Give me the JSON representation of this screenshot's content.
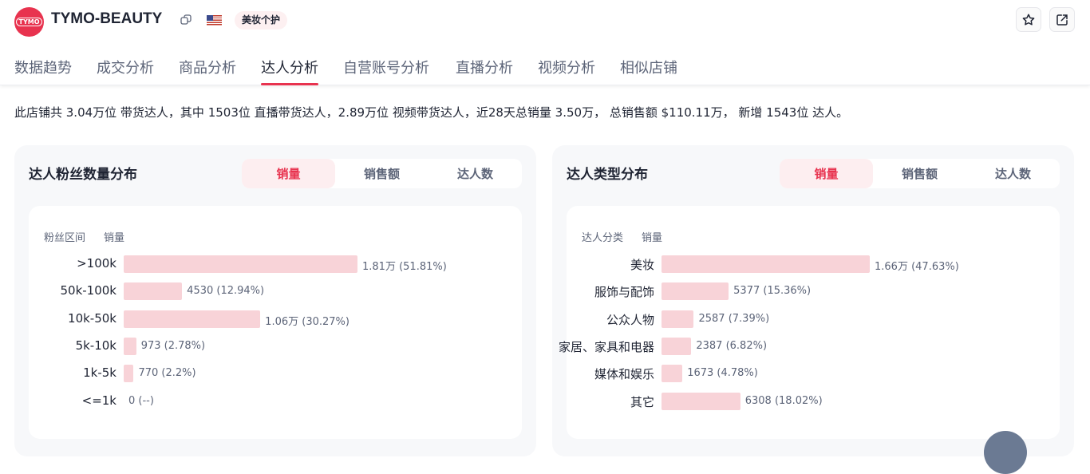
{
  "header": {
    "logo_text": "TYMO",
    "shop_name": "TYMO-BEAUTY",
    "category": "美妆个护",
    "flag": "US"
  },
  "nav": [
    {
      "label": "数据趋势"
    },
    {
      "label": "成交分析"
    },
    {
      "label": "商品分析"
    },
    {
      "label": "达人分析",
      "active": true
    },
    {
      "label": "自营账号分析"
    },
    {
      "label": "直播分析"
    },
    {
      "label": "视频分析"
    },
    {
      "label": "相似店铺"
    }
  ],
  "summary": "此店铺共 3.04万位 带货达人，其中 1503位 直播带货达人，2.89万位 视频带货达人，近28天总销量 3.50万， 总销售额 $110.11万， 新增 1543位 达人。",
  "colors": {
    "accent": "#e8334f",
    "bar": "#f8d3d8"
  },
  "cards": [
    {
      "title": "达人粉丝数量分布",
      "tabs": [
        "销量",
        "销售额",
        "达人数"
      ],
      "active_tab": 0,
      "col1": "粉丝区间",
      "col2": "销量",
      "rows": [
        {
          "label": ">100k",
          "value": "1.81万 (51.81%)",
          "pct": 51.81
        },
        {
          "label": "50k-100k",
          "value": "4530 (12.94%)",
          "pct": 12.94
        },
        {
          "label": "10k-50k",
          "value": "1.06万 (30.27%)",
          "pct": 30.27
        },
        {
          "label": "5k-10k",
          "value": "973 (2.78%)",
          "pct": 2.78
        },
        {
          "label": "1k-5k",
          "value": "770 (2.2%)",
          "pct": 2.2
        },
        {
          "label": "<=1k",
          "value": "0 (--)",
          "pct": 0
        }
      ]
    },
    {
      "title": "达人类型分布",
      "tabs": [
        "销量",
        "销售额",
        "达人数"
      ],
      "active_tab": 0,
      "col1": "达人分类",
      "col2": "销量",
      "rows": [
        {
          "label": "美妆",
          "value": "1.66万 (47.63%)",
          "pct": 47.63
        },
        {
          "label": "服饰与配饰",
          "value": "5377 (15.36%)",
          "pct": 15.36
        },
        {
          "label": "公众人物",
          "value": "2587 (7.39%)",
          "pct": 7.39
        },
        {
          "label": "家居、家具和电器",
          "value": "2387 (6.82%)",
          "pct": 6.82
        },
        {
          "label": "媒体和娱乐",
          "value": "1673 (4.78%)",
          "pct": 4.78
        },
        {
          "label": "其它",
          "value": "6308 (18.02%)",
          "pct": 18.02
        }
      ]
    }
  ]
}
